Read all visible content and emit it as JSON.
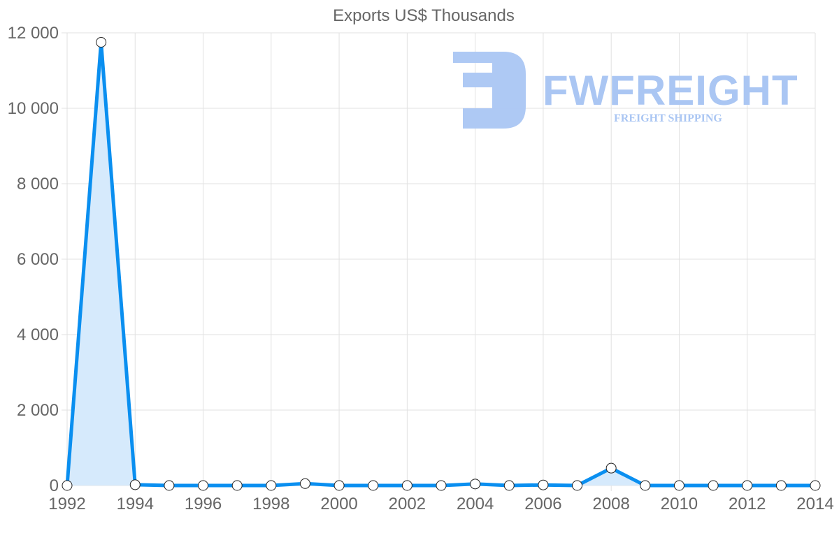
{
  "chart_data": {
    "type": "line",
    "title": "Exports US$ Thousands",
    "xlabel": "",
    "ylabel": "",
    "x": [
      1992,
      1993,
      1994,
      1995,
      1996,
      1997,
      1998,
      1999,
      2000,
      2001,
      2002,
      2003,
      2004,
      2005,
      2006,
      2007,
      2008,
      2009,
      2010,
      2011,
      2012,
      2013,
      2014
    ],
    "series": [
      {
        "name": "Exports US$ Thousands",
        "values": [
          0,
          11750,
          20,
          0,
          0,
          0,
          0,
          50,
          0,
          0,
          0,
          0,
          40,
          0,
          15,
          0,
          460,
          0,
          0,
          0,
          0,
          0,
          0
        ],
        "color": "#0a8ff0",
        "fill": "#d6eafc"
      }
    ],
    "ylim": [
      0,
      12000
    ],
    "xlim": [
      1992,
      2014
    ],
    "y_ticks": [
      0,
      2000,
      4000,
      6000,
      8000,
      10000,
      12000
    ],
    "y_tick_labels": [
      "0",
      "2 000",
      "4 000",
      "6 000",
      "8 000",
      "10 000",
      "12 000"
    ],
    "x_ticks": [
      1992,
      1994,
      1996,
      1998,
      2000,
      2002,
      2004,
      2006,
      2008,
      2010,
      2012,
      2014
    ],
    "x_tick_labels": [
      "1992",
      "1994",
      "1996",
      "1998",
      "2000",
      "2002",
      "2004",
      "2006",
      "2008",
      "2010",
      "2012",
      "2014"
    ],
    "grid": true,
    "legend": "none"
  },
  "watermark": {
    "brand": "FWFREIGHT",
    "tagline": "FREIGHT SHIPPING",
    "color": "#aac6f3"
  }
}
